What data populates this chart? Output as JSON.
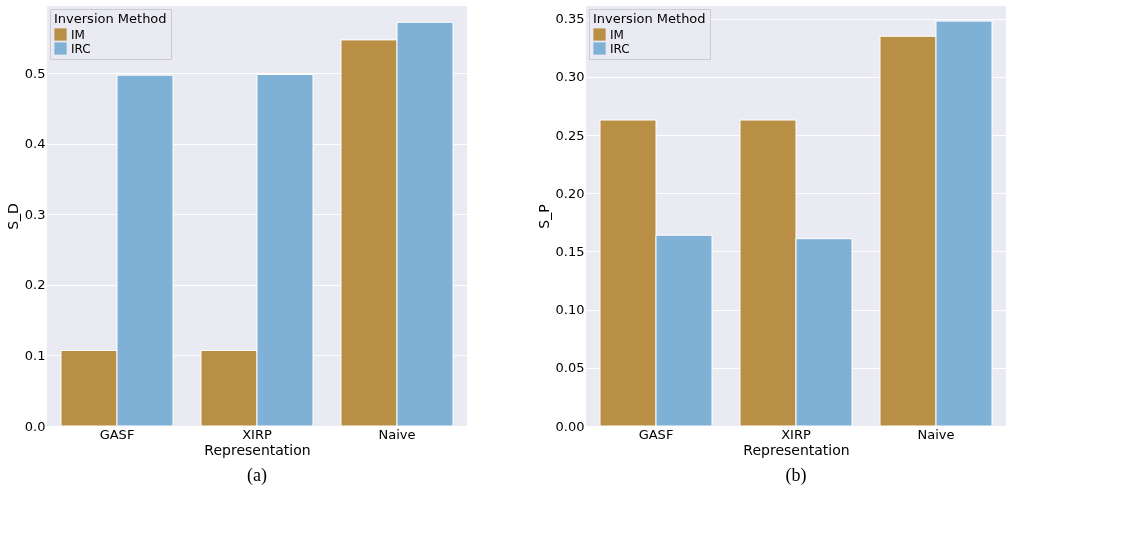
{
  "chart_data": [
    {
      "type": "bar",
      "categories": [
        "GASF",
        "XIRP",
        "Naive"
      ],
      "xlabel": "Representation",
      "ylabel": "S_D",
      "legend_title": "Inversion Method",
      "legend": "top left",
      "grid": "y",
      "ylim": [
        0,
        0.595
      ],
      "yticks": [
        {
          "value": 0,
          "label": "0.0"
        },
        0.1,
        0.2,
        0.3,
        0.4,
        0.5
      ],
      "series": [
        {
          "name": "IM",
          "color": "#b98f45",
          "values": [
            0.107,
            0.107,
            0.547
          ]
        },
        {
          "name": "IRC",
          "color": "#7fb0d6",
          "values": [
            0.497,
            0.498,
            0.572
          ]
        }
      ],
      "annotations": [
        "(a)"
      ]
    },
    {
      "type": "bar",
      "categories": [
        "GASF",
        "XIRP",
        "Naive"
      ],
      "xlabel": "Representation",
      "ylabel": "S_P",
      "legend_title": "Inversion Method",
      "legend": "top left",
      "grid": "y",
      "ylim": [
        0,
        0.361
      ],
      "yticks": [
        {
          "value": 0,
          "label": "0.00"
        },
        0.05,
        {
          "value": 0.1,
          "label": "0.10"
        },
        0.15,
        {
          "value": 0.2,
          "label": "0.20"
        },
        0.25,
        {
          "value": 0.3,
          "label": "0.30"
        },
        0.35
      ],
      "series": [
        {
          "name": "IM",
          "color": "#b98f45",
          "values": [
            0.263,
            0.263,
            0.335
          ]
        },
        {
          "name": "IRC",
          "color": "#7fb0d6",
          "values": [
            0.164,
            0.161,
            0.348
          ]
        }
      ],
      "annotations": [
        "(b)"
      ]
    }
  ]
}
